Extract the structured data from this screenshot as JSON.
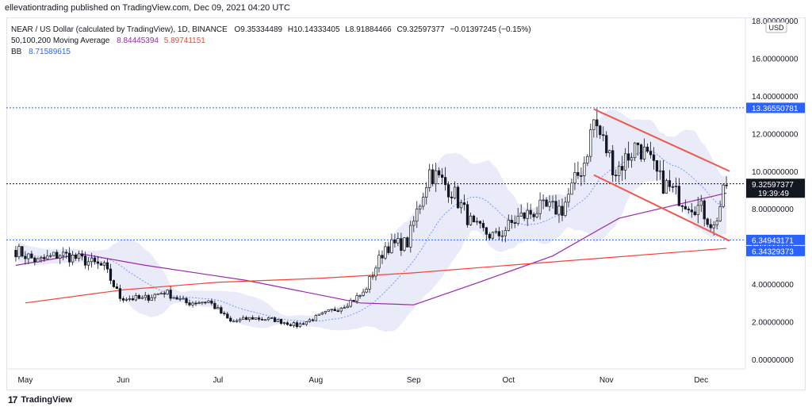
{
  "header": {
    "published_text": "ellevationtrading published on TradingView.com, Dec 09, 2021 04:20 UTC"
  },
  "legend": {
    "symbol": "NEAR / US Dollar (calculated by TradingView), 1D, BINANCE",
    "open": "O9.35334489",
    "high": "H10.14333405",
    "low": "L8.91884466",
    "close": "C9.32597377",
    "change": "−0.01397245 (−0.15%)",
    "ma_label": "50,100,200 Moving Average",
    "ma_value_1": "8.84445394",
    "ma_value_2": "5.89741151",
    "bb_label": "BB",
    "bb_value": "8.71589615"
  },
  "axis": {
    "currency": "USD",
    "y_ticks": [
      "0.00000000",
      "2.00000000",
      "4.00000000",
      "6.00000000",
      "8.00000000",
      "10.00000000",
      "12.00000000",
      "14.00000000",
      "16.00000000",
      "18.00000000"
    ],
    "x_ticks": [
      "May",
      "Jun",
      "Jul",
      "Aug",
      "Sep",
      "Oct",
      "Nov",
      "Dec"
    ],
    "price_tags": {
      "resistance": "13.36550781",
      "last": "9.32597377",
      "countdown": "19:39:49",
      "support": "6.34943171",
      "ma200": "6.34329373"
    }
  },
  "footer": {
    "brand": "TradingView",
    "logo": "17"
  },
  "colors": {
    "up": "#131722",
    "down": "#131722",
    "ma50": "#9c27b0",
    "ma200": "#f44336",
    "bb_fill": "#dfe3f7",
    "channel": "#f0584c",
    "dotted_blue": "#2962ff",
    "dotted_black": "#131722"
  },
  "chart_data": {
    "type": "candlestick",
    "title": "NEAR / US Dollar",
    "ylim": [
      0,
      18
    ],
    "x_labels": [
      "May",
      "Jun",
      "Jul",
      "Aug",
      "Sep",
      "Oct",
      "Nov",
      "Dec"
    ],
    "horizontal_levels": [
      13.37,
      9.33,
      6.35
    ],
    "close_path": [
      [
        "2021-04-28",
        5.8
      ],
      [
        "2021-05-05",
        5.2
      ],
      [
        "2021-05-12",
        5.6
      ],
      [
        "2021-05-19",
        5.3
      ],
      [
        "2021-05-26",
        4.9
      ],
      [
        "2021-05-31",
        3.3
      ],
      [
        "2021-06-07",
        3.2
      ],
      [
        "2021-06-14",
        3.6
      ],
      [
        "2021-06-21",
        3.0
      ],
      [
        "2021-06-28",
        3.1
      ],
      [
        "2021-07-05",
        2.0
      ],
      [
        "2021-07-12",
        2.2
      ],
      [
        "2021-07-19",
        2.1
      ],
      [
        "2021-07-26",
        1.8
      ],
      [
        "2021-08-02",
        2.3
      ],
      [
        "2021-08-09",
        2.8
      ],
      [
        "2021-08-16",
        3.5
      ],
      [
        "2021-08-23",
        6.0
      ],
      [
        "2021-08-30",
        6.2
      ],
      [
        "2021-09-06",
        10.0
      ],
      [
        "2021-09-13",
        9.0
      ],
      [
        "2021-09-20",
        7.0
      ],
      [
        "2021-09-27",
        6.5
      ],
      [
        "2021-10-04",
        7.5
      ],
      [
        "2021-10-11",
        8.0
      ],
      [
        "2021-10-18",
        8.0
      ],
      [
        "2021-10-25",
        10.5
      ],
      [
        "2021-10-28",
        12.7
      ],
      [
        "2021-11-04",
        10.0
      ],
      [
        "2021-11-11",
        11.5
      ],
      [
        "2021-11-18",
        9.5
      ],
      [
        "2021-11-25",
        8.5
      ],
      [
        "2021-12-01",
        8.0
      ],
      [
        "2021-12-05",
        7.0
      ],
      [
        "2021-12-09",
        9.33
      ]
    ],
    "ma_purple": [
      [
        "2021-04-28",
        5.0
      ],
      [
        "2021-05-19",
        5.6
      ],
      [
        "2021-06-08",
        5.0
      ],
      [
        "2021-07-10",
        4.2
      ],
      [
        "2021-08-15",
        3.0
      ],
      [
        "2021-09-01",
        2.9
      ],
      [
        "2021-09-20",
        4.0
      ],
      [
        "2021-10-15",
        5.5
      ],
      [
        "2021-11-05",
        7.5
      ],
      [
        "2021-12-09",
        8.84
      ]
    ],
    "ma_red": [
      [
        "2021-05-01",
        3.0
      ],
      [
        "2021-06-01",
        3.7
      ],
      [
        "2021-07-01",
        4.1
      ],
      [
        "2021-08-01",
        4.3
      ],
      [
        "2021-09-01",
        4.6
      ],
      [
        "2021-10-01",
        5.0
      ],
      [
        "2021-11-01",
        5.4
      ],
      [
        "2021-12-09",
        5.9
      ]
    ],
    "channel_lines": [
      {
        "name": "upper",
        "points": [
          [
            "2021-10-28",
            13.3
          ],
          [
            "2021-12-10",
            10.0
          ]
        ]
      },
      {
        "name": "lower",
        "points": [
          [
            "2021-10-28",
            9.8
          ],
          [
            "2021-12-10",
            6.3
          ]
        ]
      }
    ]
  }
}
